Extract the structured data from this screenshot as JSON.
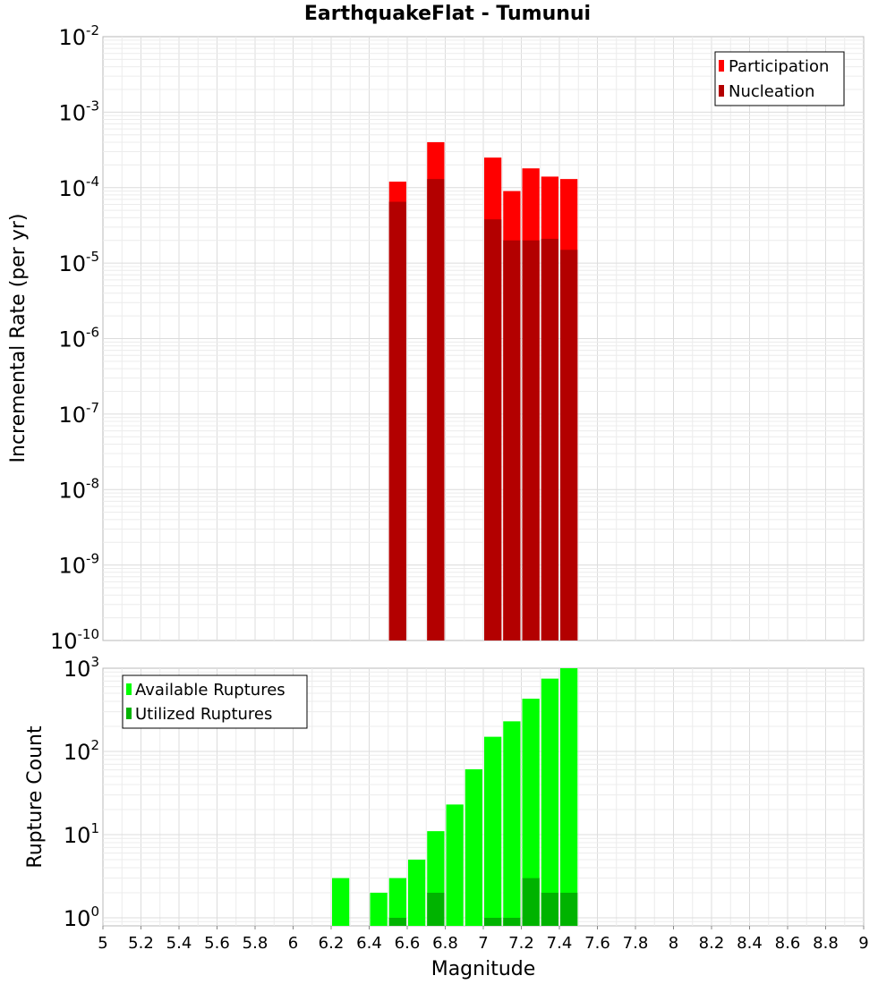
{
  "title": "EarthquakeFlat - Tumunui",
  "colors": {
    "participation": "#ff0000",
    "nucleation": "#b30000",
    "available": "#00ff00",
    "utilized": "#00b300"
  },
  "chart_data": [
    {
      "type": "bar",
      "ylabel": "Incremental Rate (per yr)",
      "y_scale": "log",
      "ylim": [
        1e-10,
        0.01
      ],
      "y_tick_exponents": [
        "-2",
        "-3",
        "-4",
        "-5",
        "-6",
        "-7",
        "-8",
        "-9",
        "-10"
      ],
      "xlim": [
        5,
        9
      ],
      "bar_width": 0.1,
      "grid": true,
      "legend_position": "top-right",
      "series": [
        {
          "name": "Participation",
          "color": "#ff0000",
          "x": [
            6.55,
            6.75,
            7.05,
            7.15,
            7.25,
            7.35,
            7.45
          ],
          "values": [
            0.00012,
            0.0004,
            0.00025,
            9e-05,
            0.00018,
            0.00014,
            0.00013
          ]
        },
        {
          "name": "Nucleation",
          "color": "#b30000",
          "x": [
            6.55,
            6.75,
            7.05,
            7.15,
            7.25,
            7.35,
            7.45
          ],
          "values": [
            6.5e-05,
            0.00013,
            3.8e-05,
            2e-05,
            2e-05,
            2.1e-05,
            1.5e-05
          ]
        }
      ]
    },
    {
      "type": "bar",
      "ylabel": "Rupture Count",
      "xlabel": "Magnitude",
      "y_scale": "log",
      "ylim": [
        0.8,
        1000
      ],
      "y_tick_exponents": [
        "3",
        "2",
        "1",
        "0"
      ],
      "xlim": [
        5,
        9
      ],
      "x_ticks": [
        "5",
        "5.2",
        "5.4",
        "5.6",
        "5.8",
        "6",
        "6.2",
        "6.4",
        "6.6",
        "6.8",
        "7",
        "7.2",
        "7.4",
        "7.6",
        "7.8",
        "8",
        "8.2",
        "8.4",
        "8.6",
        "8.8",
        "9"
      ],
      "bar_width": 0.1,
      "grid": true,
      "legend_position": "top-left",
      "series": [
        {
          "name": "Available Ruptures",
          "color": "#00ff00",
          "x": [
            6.25,
            6.45,
            6.55,
            6.65,
            6.75,
            6.85,
            6.95,
            7.05,
            7.15,
            7.25,
            7.35,
            7.45
          ],
          "values": [
            3,
            2,
            3,
            5,
            11,
            23,
            61,
            150,
            230,
            430,
            750,
            1000
          ]
        },
        {
          "name": "Utilized Ruptures",
          "color": "#00b300",
          "x": [
            6.55,
            6.75,
            7.05,
            7.15,
            7.25,
            7.35,
            7.45
          ],
          "values": [
            1,
            2,
            1,
            1,
            3,
            2,
            2
          ]
        }
      ]
    }
  ]
}
